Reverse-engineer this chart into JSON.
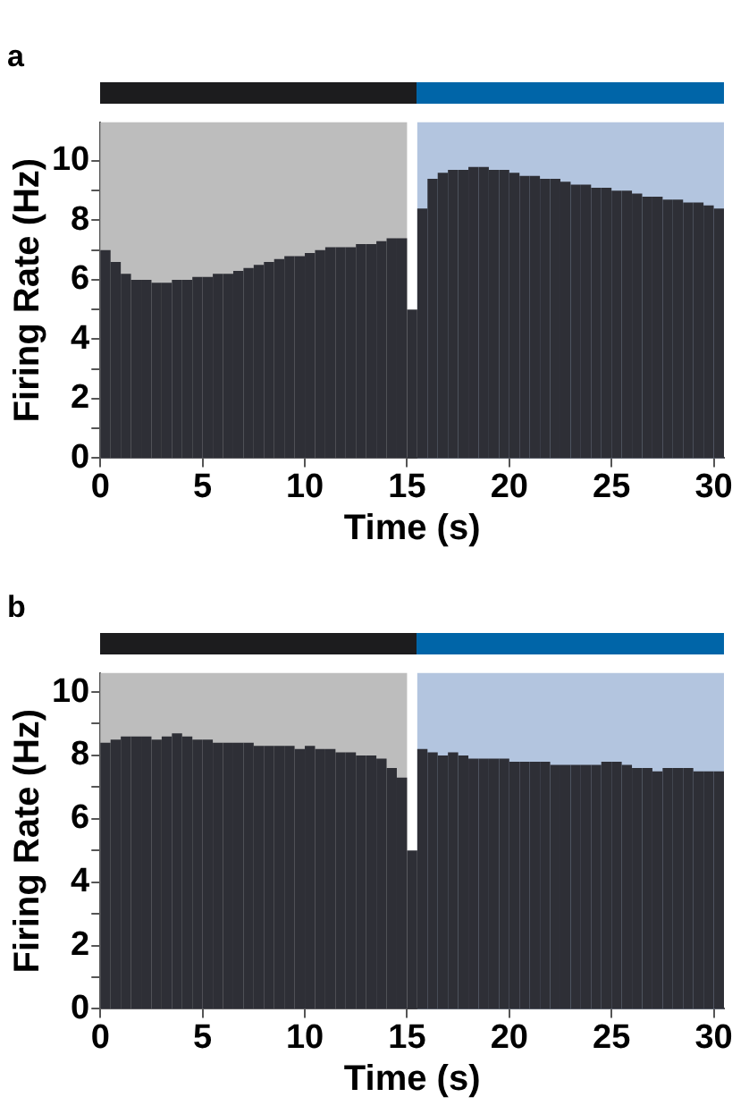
{
  "chart_data": [
    {
      "type": "histogram",
      "title": "a",
      "xlabel": "Time (s)",
      "ylabel": "Firing Rate (Hz)",
      "color": "#2e2f36",
      "bins": [
        0,
        0.5,
        1,
        1.5,
        2,
        2.5,
        3,
        3.5,
        4,
        4.5,
        5,
        5.5,
        6,
        6.5,
        7,
        7.5,
        8,
        8.5,
        9,
        9.5,
        10,
        10.5,
        11,
        11.5,
        12,
        12.5,
        13,
        13.5,
        14,
        14.5,
        15,
        15.5,
        16,
        16.5,
        17,
        17.5,
        18,
        18.5,
        19,
        19.5,
        20,
        20.5,
        21,
        21.5,
        22,
        22.5,
        23,
        23.5,
        24,
        24.5,
        25,
        25.5,
        26,
        26.5,
        27,
        27.5,
        28,
        28.5,
        29,
        29.5,
        30,
        30.5
      ],
      "values": [
        7.0,
        6.6,
        6.2,
        6.0,
        6.0,
        5.9,
        5.9,
        6.0,
        6.0,
        6.1,
        6.1,
        6.2,
        6.2,
        6.3,
        6.4,
        6.5,
        6.6,
        6.7,
        6.8,
        6.8,
        6.9,
        7.0,
        7.1,
        7.1,
        7.1,
        7.2,
        7.2,
        7.3,
        7.4,
        7.4,
        5.0,
        8.4,
        9.4,
        9.6,
        9.7,
        9.7,
        9.8,
        9.8,
        9.7,
        9.7,
        9.6,
        9.5,
        9.5,
        9.4,
        9.4,
        9.3,
        9.2,
        9.2,
        9.1,
        9.1,
        9.0,
        9.0,
        8.9,
        8.8,
        8.8,
        8.7,
        8.7,
        8.6,
        8.6,
        8.5,
        8.4
      ],
      "xlim": [
        0,
        30.5
      ],
      "xticks": [
        0,
        5,
        10,
        15,
        20,
        25,
        30
      ],
      "ylim": [
        0,
        11.3
      ],
      "yticks": [
        0,
        {
          "value": 1,
          "label": null
        },
        2,
        {
          "value": 3,
          "label": null
        },
        4,
        {
          "value": 5,
          "label": null
        },
        6,
        {
          "value": 7,
          "label": null
        },
        8,
        {
          "value": 9,
          "label": null
        },
        10
      ],
      "bands": [
        {
          "axis": "x",
          "from": 0,
          "to": 15,
          "color": "#bdbdbd"
        },
        {
          "axis": "x",
          "from": 15.5,
          "to": 30.5,
          "color": "#b3c5df"
        }
      ],
      "grid": false,
      "legend": false
    },
    {
      "type": "histogram",
      "title": "b",
      "xlabel": "Time (s)",
      "ylabel": "Firing Rate (Hz)",
      "color": "#2e2f36",
      "bins": [
        0,
        0.5,
        1,
        1.5,
        2,
        2.5,
        3,
        3.5,
        4,
        4.5,
        5,
        5.5,
        6,
        6.5,
        7,
        7.5,
        8,
        8.5,
        9,
        9.5,
        10,
        10.5,
        11,
        11.5,
        12,
        12.5,
        13,
        13.5,
        14,
        14.5,
        15,
        15.5,
        16,
        16.5,
        17,
        17.5,
        18,
        18.5,
        19,
        19.5,
        20,
        20.5,
        21,
        21.5,
        22,
        22.5,
        23,
        23.5,
        24,
        24.5,
        25,
        25.5,
        26,
        26.5,
        27,
        27.5,
        28,
        28.5,
        29,
        29.5,
        30,
        30.5
      ],
      "values": [
        8.4,
        8.5,
        8.6,
        8.6,
        8.6,
        8.5,
        8.6,
        8.7,
        8.6,
        8.5,
        8.5,
        8.4,
        8.4,
        8.4,
        8.4,
        8.3,
        8.3,
        8.3,
        8.3,
        8.2,
        8.3,
        8.2,
        8.2,
        8.1,
        8.1,
        8.0,
        8.0,
        7.9,
        7.6,
        7.3,
        5.0,
        8.2,
        8.1,
        8.0,
        8.1,
        8.0,
        7.9,
        7.9,
        7.9,
        7.9,
        7.8,
        7.8,
        7.8,
        7.8,
        7.7,
        7.7,
        7.7,
        7.7,
        7.7,
        7.8,
        7.8,
        7.7,
        7.6,
        7.6,
        7.5,
        7.6,
        7.6,
        7.6,
        7.5,
        7.5,
        7.5
      ],
      "xlim": [
        0,
        30.5
      ],
      "xticks": [
        0,
        5,
        10,
        15,
        20,
        25,
        30
      ],
      "ylim": [
        0,
        10.6
      ],
      "yticks": [
        0,
        {
          "value": 1,
          "label": null
        },
        2,
        {
          "value": 3,
          "label": null
        },
        4,
        {
          "value": 5,
          "label": null
        },
        6,
        {
          "value": 7,
          "label": null
        },
        8,
        {
          "value": 9,
          "label": null
        },
        10
      ],
      "bands": [
        {
          "axis": "x",
          "from": 0,
          "to": 15,
          "color": "#bdbdbd"
        },
        {
          "axis": "x",
          "from": 15.5,
          "to": 30.5,
          "color": "#b3c5df"
        }
      ],
      "grid": false,
      "legend": false
    }
  ]
}
